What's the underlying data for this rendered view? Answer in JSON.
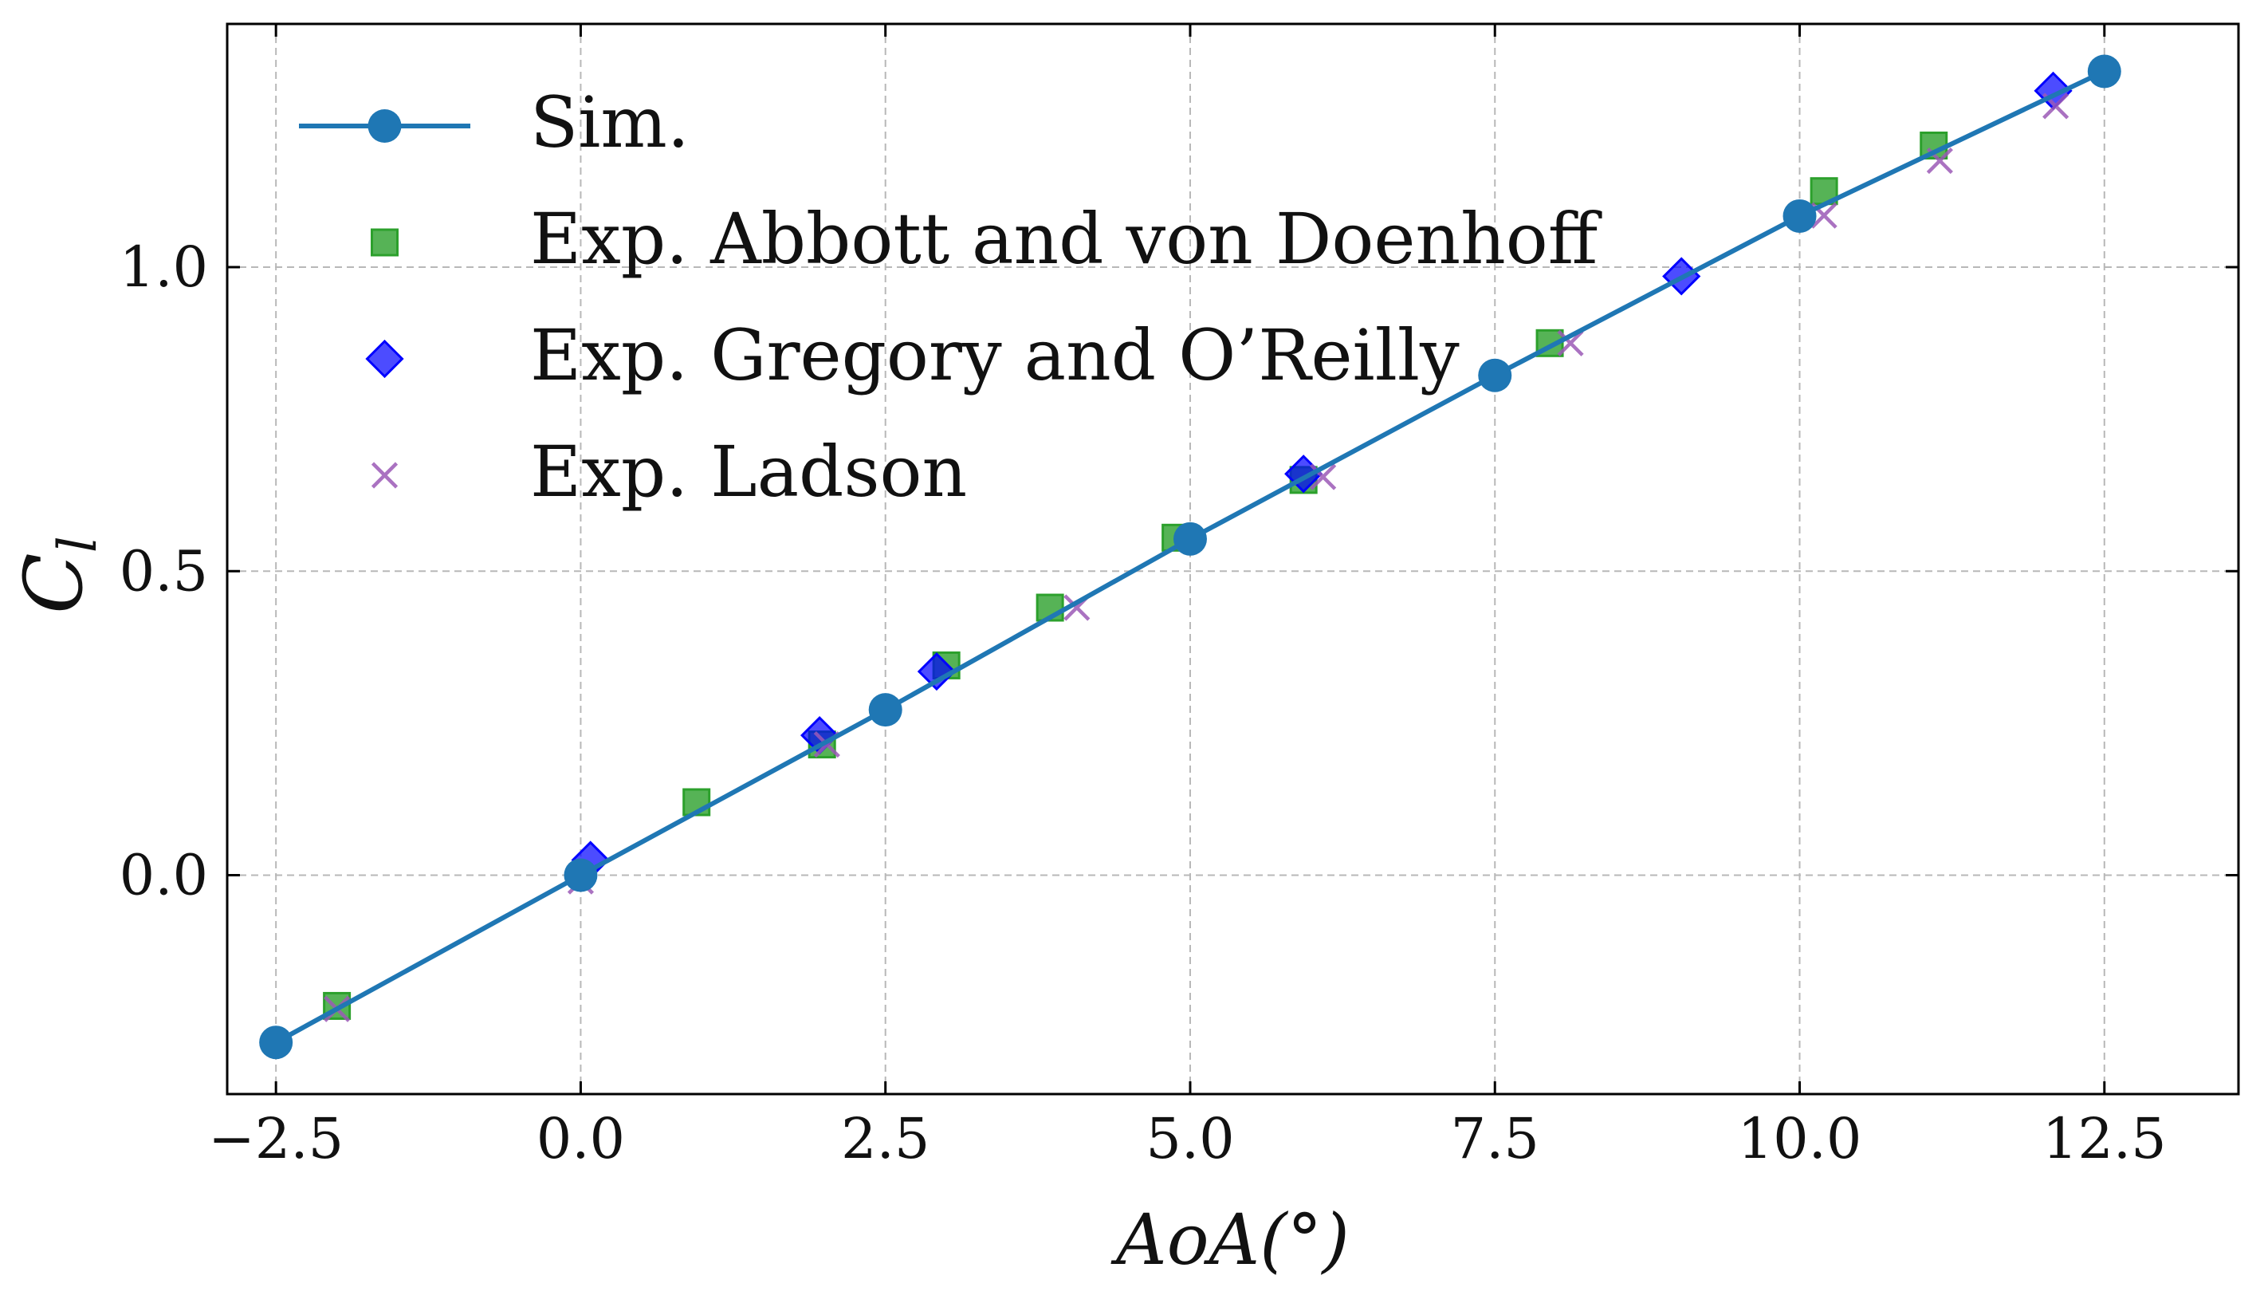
{
  "chart_data": {
    "type": "scatter",
    "title": "",
    "xlabel": "AoA(°)",
    "ylabel": "C_l",
    "ylabel_main": "C",
    "ylabel_sub": "l",
    "xlim": [
      -2.9,
      13.6
    ],
    "ylim": [
      -0.36,
      1.4
    ],
    "x_ticks": [
      -2.5,
      0.0,
      2.5,
      5.0,
      7.5,
      10.0,
      12.5
    ],
    "x_tick_labels": [
      "−2.5",
      "0.0",
      "2.5",
      "5.0",
      "7.5",
      "10.0",
      "12.5"
    ],
    "y_ticks": [
      0.0,
      0.5,
      1.0
    ],
    "y_tick_labels": [
      "0.0",
      "0.5",
      "1.0"
    ],
    "grid": true,
    "legend_position": "top-left",
    "series": [
      {
        "name": "Sim.",
        "marker": "circle",
        "line": true,
        "color": "#1f77b4",
        "x": [
          -2.5,
          0.0,
          2.5,
          5.0,
          7.5,
          10.0,
          12.5
        ],
        "y": [
          -0.275,
          0.0,
          0.272,
          0.553,
          0.822,
          1.084,
          1.322
        ]
      },
      {
        "name": "Exp. Abbott and von Doenhoff",
        "marker": "square",
        "line": false,
        "color": "#2ca02c",
        "x": [
          -2.0,
          0.95,
          1.98,
          3.0,
          3.85,
          4.88,
          5.93,
          7.95,
          10.2,
          11.1
        ],
        "y": [
          -0.215,
          0.12,
          0.215,
          0.345,
          0.44,
          0.555,
          0.65,
          0.875,
          1.125,
          1.2
        ]
      },
      {
        "name": "Exp. Gregory and O’Reilly",
        "marker": "diamond",
        "line": false,
        "color": "#0000ff",
        "x": [
          0.08,
          1.96,
          2.92,
          5.93,
          9.03,
          12.08
        ],
        "y": [
          0.025,
          0.23,
          0.335,
          0.66,
          0.985,
          1.29
        ]
      },
      {
        "name": "Exp. Ladson",
        "marker": "x",
        "line": false,
        "color": "#9b59b6",
        "x": [
          -2.0,
          0.0,
          2.02,
          4.07,
          6.09,
          8.12,
          10.2,
          11.15,
          12.1
        ],
        "y": [
          -0.22,
          -0.01,
          0.215,
          0.44,
          0.655,
          0.875,
          1.085,
          1.175,
          1.265
        ]
      }
    ]
  }
}
